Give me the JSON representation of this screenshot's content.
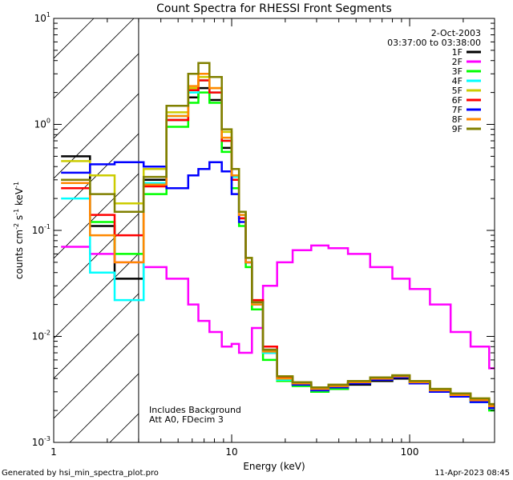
{
  "chart_data": {
    "type": "line",
    "title": "Count Spectra for RHESSI Front Segments",
    "xlabel": "Energy (keV)",
    "ylabel": "counts cm^-2 s^-1 keV^-1",
    "xscale": "log",
    "yscale": "log",
    "xlim": [
      1,
      300
    ],
    "ylim": [
      0.001,
      10
    ],
    "x_ticks": [
      {
        "value": 1,
        "label": "1"
      },
      {
        "value": 10,
        "label": "10"
      },
      {
        "value": 100,
        "label": "100"
      }
    ],
    "y_ticks": [
      {
        "value": 10,
        "base": "10",
        "exp": "1"
      },
      {
        "value": 1,
        "base": "10",
        "exp": "0"
      },
      {
        "value": 0.1,
        "base": "10",
        "exp": "-1"
      },
      {
        "value": 0.01,
        "base": "10",
        "exp": "-2"
      },
      {
        "value": 0.001,
        "base": "10",
        "exp": "-3"
      }
    ],
    "date": "2-Oct-2003",
    "time_range": "03:37:00 to 03:38:00",
    "shaded_region_kev": [
      1,
      3
    ],
    "annotation_lines": [
      "Includes Background",
      "Att A0, FDecim 3"
    ],
    "series": [
      {
        "name": "1F",
        "color": "#000000",
        "x": [
          1.1,
          1.6,
          2.2,
          3.2,
          4.3,
          5.7,
          6.5,
          7.5,
          8.8,
          10,
          11,
          12,
          13,
          15,
          18,
          22,
          28,
          35,
          45,
          60,
          80,
          100,
          130,
          170,
          220,
          280
        ],
        "values": [
          0.5,
          0.11,
          0.035,
          0.3,
          1.1,
          1.8,
          2.2,
          1.7,
          0.6,
          0.3,
          0.13,
          0.05,
          0.02,
          0.007,
          0.004,
          0.0035,
          0.003,
          0.0032,
          0.0035,
          0.0038,
          0.004,
          0.0036,
          0.003,
          0.0028,
          0.0025,
          0.0022
        ]
      },
      {
        "name": "2F",
        "color": "#ff00ff",
        "x": [
          1.1,
          1.6,
          2.2,
          3.2,
          4.3,
          5.7,
          6.5,
          7.5,
          8.8,
          10,
          11,
          12,
          13,
          15,
          18,
          22,
          28,
          35,
          45,
          60,
          80,
          100,
          130,
          170,
          220,
          280
        ],
        "values": [
          0.07,
          0.06,
          0.05,
          0.045,
          0.035,
          0.02,
          0.014,
          0.011,
          0.008,
          0.0085,
          0.007,
          0.007,
          0.012,
          0.03,
          0.05,
          0.065,
          0.072,
          0.068,
          0.06,
          0.045,
          0.035,
          0.028,
          0.02,
          0.011,
          0.008,
          0.005
        ]
      },
      {
        "name": "3F",
        "color": "#00ff00",
        "x": [
          1.1,
          1.6,
          2.2,
          3.2,
          4.3,
          5.7,
          6.5,
          7.5,
          8.8,
          10,
          11,
          12,
          13,
          15,
          18,
          22,
          28,
          35,
          45,
          60,
          80,
          100,
          130,
          170,
          220,
          280
        ],
        "values": [
          0.3,
          0.12,
          0.06,
          0.22,
          0.95,
          1.6,
          2.0,
          1.6,
          0.55,
          0.25,
          0.11,
          0.045,
          0.018,
          0.006,
          0.0038,
          0.0034,
          0.003,
          0.0032,
          0.0036,
          0.004,
          0.0042,
          0.0037,
          0.0031,
          0.0028,
          0.0024,
          0.002
        ]
      },
      {
        "name": "4F",
        "color": "#00ffff",
        "x": [
          1.1,
          1.6,
          2.2,
          3.2,
          4.3,
          5.7,
          6.5,
          7.5,
          8.8,
          10,
          11,
          12,
          13,
          15,
          18,
          22,
          28,
          35,
          45,
          60,
          80,
          100,
          130,
          170,
          220,
          280
        ],
        "values": [
          0.2,
          0.04,
          0.022,
          0.28,
          1.2,
          2.0,
          2.6,
          2.0,
          0.7,
          0.32,
          0.14,
          0.05,
          0.02,
          0.007,
          0.0039,
          0.0035,
          0.0031,
          0.0033,
          0.0036,
          0.0039,
          0.0041,
          0.0036,
          0.003,
          0.0027,
          0.0024,
          0.0021
        ]
      },
      {
        "name": "5F",
        "color": "#cccc00",
        "x": [
          1.1,
          1.6,
          2.2,
          3.2,
          4.3,
          5.7,
          6.5,
          7.5,
          8.8,
          10,
          11,
          12,
          13,
          15,
          18,
          22,
          28,
          35,
          45,
          60,
          80,
          100,
          130,
          170,
          220,
          280
        ],
        "values": [
          0.45,
          0.33,
          0.18,
          0.38,
          1.3,
          2.2,
          2.8,
          2.2,
          0.85,
          0.38,
          0.15,
          0.055,
          0.021,
          0.0075,
          0.0042,
          0.0037,
          0.0033,
          0.0035,
          0.0038,
          0.0041,
          0.0043,
          0.0038,
          0.0032,
          0.0029,
          0.0026,
          0.0023
        ]
      },
      {
        "name": "6F",
        "color": "#ff0000",
        "x": [
          1.1,
          1.6,
          2.2,
          3.2,
          4.3,
          5.7,
          6.5,
          7.5,
          8.8,
          10,
          11,
          12,
          13,
          15,
          18,
          22,
          28,
          35,
          45,
          60,
          80,
          100,
          130,
          170,
          220,
          280
        ],
        "values": [
          0.25,
          0.14,
          0.09,
          0.26,
          1.1,
          2.1,
          2.6,
          2.0,
          0.7,
          0.3,
          0.13,
          0.05,
          0.022,
          0.008,
          0.0041,
          0.0036,
          0.0032,
          0.0034,
          0.0037,
          0.004,
          0.0042,
          0.0037,
          0.0031,
          0.0028,
          0.0025,
          0.0022
        ]
      },
      {
        "name": "7F",
        "color": "#0000ff",
        "x": [
          1.1,
          1.6,
          2.2,
          3.2,
          4.3,
          5.7,
          6.5,
          7.5,
          8.8,
          10,
          11,
          12,
          13,
          15,
          18,
          22,
          28,
          35,
          45,
          60,
          80,
          100,
          130,
          170,
          220,
          280
        ],
        "values": [
          0.35,
          0.42,
          0.44,
          0.4,
          0.25,
          0.33,
          0.38,
          0.44,
          0.36,
          0.22,
          0.12,
          0.05,
          0.021,
          0.0075,
          0.004,
          0.0035,
          0.0031,
          0.0033,
          0.0036,
          0.0039,
          0.0041,
          0.0036,
          0.003,
          0.0027,
          0.0024,
          0.0021
        ]
      },
      {
        "name": "8F",
        "color": "#ff8800",
        "x": [
          1.1,
          1.6,
          2.2,
          3.2,
          4.3,
          5.7,
          6.5,
          7.5,
          8.8,
          10,
          11,
          12,
          13,
          15,
          18,
          22,
          28,
          35,
          45,
          60,
          80,
          100,
          130,
          170,
          220,
          280
        ],
        "values": [
          0.28,
          0.09,
          0.05,
          0.27,
          1.2,
          2.3,
          3.0,
          2.2,
          0.75,
          0.33,
          0.14,
          0.05,
          0.02,
          0.0072,
          0.004,
          0.0036,
          0.0032,
          0.0034,
          0.0037,
          0.004,
          0.0042,
          0.0037,
          0.0031,
          0.0028,
          0.0025,
          0.0022
        ]
      },
      {
        "name": "9F",
        "color": "#808000",
        "x": [
          1.1,
          1.6,
          2.2,
          3.2,
          4.3,
          5.7,
          6.5,
          7.5,
          8.8,
          10,
          11,
          12,
          13,
          15,
          18,
          22,
          28,
          35,
          45,
          60,
          80,
          100,
          130,
          170,
          220,
          280
        ],
        "values": [
          0.3,
          0.22,
          0.15,
          0.32,
          1.5,
          3.0,
          3.8,
          2.8,
          0.9,
          0.38,
          0.15,
          0.055,
          0.021,
          0.0075,
          0.0042,
          0.0037,
          0.0033,
          0.0035,
          0.0038,
          0.0041,
          0.0043,
          0.0038,
          0.0032,
          0.0029,
          0.0026,
          0.0023
        ]
      }
    ]
  },
  "footer": {
    "generated_by": "Generated by hsi_min_spectra_plot.pro",
    "generated_date": "11-Apr-2023 08:45"
  }
}
